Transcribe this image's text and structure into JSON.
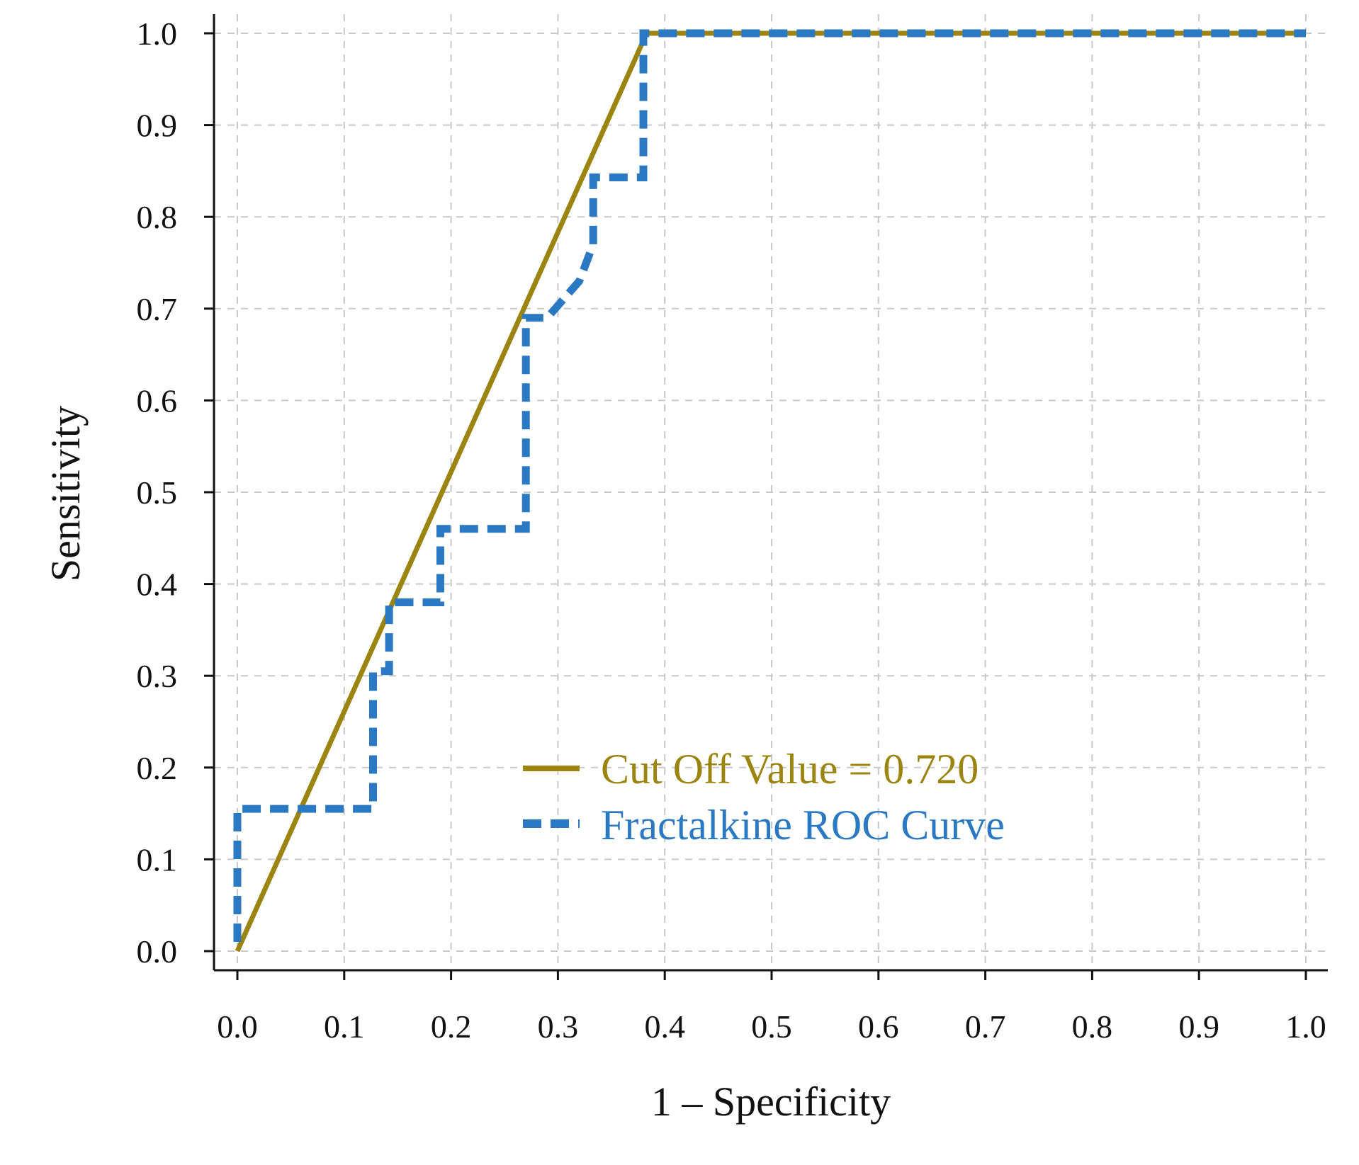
{
  "chart_data": {
    "type": "line",
    "title": "",
    "xlabel": "1 – Specificity",
    "ylabel": "Sensitivity",
    "xlim": [
      0,
      1
    ],
    "ylim": [
      0,
      1
    ],
    "x_ticks": [
      "0.0",
      "0.1",
      "0.2",
      "0.3",
      "0.4",
      "0.5",
      "0.6",
      "0.7",
      "0.8",
      "0.9",
      "1.0"
    ],
    "y_ticks": [
      "0.0",
      "0.1",
      "0.2",
      "0.3",
      "0.4",
      "0.5",
      "0.6",
      "0.7",
      "0.8",
      "0.9",
      "1.0"
    ],
    "grid": true,
    "legend_position": "lower-right",
    "series": [
      {
        "name": "Cut Off Value = 0.720",
        "style": "solid",
        "color": "#9b8510",
        "points": [
          [
            0.0,
            0.0
          ],
          [
            0.383,
            1.0
          ],
          [
            1.0,
            1.0
          ]
        ]
      },
      {
        "name": "Fractalkine ROC Curve",
        "style": "dashed",
        "color": "#2b79c2",
        "points": [
          [
            0.0,
            0.01
          ],
          [
            0.0,
            0.155
          ],
          [
            0.127,
            0.155
          ],
          [
            0.127,
            0.305
          ],
          [
            0.142,
            0.305
          ],
          [
            0.142,
            0.38
          ],
          [
            0.19,
            0.38
          ],
          [
            0.19,
            0.46
          ],
          [
            0.27,
            0.46
          ],
          [
            0.27,
            0.69
          ],
          [
            0.29,
            0.69
          ],
          [
            0.32,
            0.73
          ],
          [
            0.333,
            0.77
          ],
          [
            0.333,
            0.843
          ],
          [
            0.38,
            0.843
          ],
          [
            0.38,
            1.0
          ],
          [
            1.0,
            1.0
          ]
        ]
      }
    ]
  }
}
